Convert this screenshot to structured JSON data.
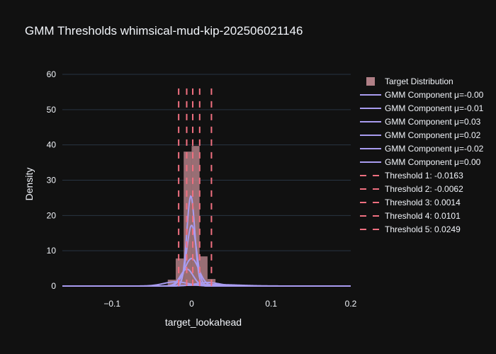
{
  "chart_data": {
    "type": "bar",
    "title": "GMM Thresholds whimsical-mud-kip-202506021146",
    "xlabel": "target_lookahead",
    "ylabel": "Density",
    "xlim": [
      -0.1625,
      0.2
    ],
    "ylim": [
      0,
      60
    ],
    "xticks": [
      {
        "v": -0.1,
        "label": "−0.1"
      },
      {
        "v": 0,
        "label": "0"
      },
      {
        "v": 0.1,
        "label": "0.1"
      },
      {
        "v": 0.2,
        "label": "0.2"
      }
    ],
    "yticks": [
      0,
      10,
      20,
      30,
      40,
      50,
      60
    ],
    "grid": true,
    "legend_position": "right",
    "colors": {
      "histogram": "#b07f86",
      "gmm": "#a99cf0",
      "threshold": "#f07080",
      "grid": "#283442",
      "background": "#111111"
    },
    "histogram": {
      "name": "Target Distribution",
      "bin_edges": [
        -0.03,
        -0.02,
        -0.01,
        0.0,
        0.01,
        0.02,
        0.03,
        0.04
      ],
      "values": [
        1.8,
        7.8,
        38.1,
        39.7,
        8.4,
        2.0,
        0.3
      ]
    },
    "gmm_components": [
      {
        "name": "GMM Component μ=-0.00",
        "mean": -0.001,
        "peak": 25.5,
        "sigma": 0.005
      },
      {
        "name": "GMM Component μ=-0.01",
        "mean": -0.006,
        "peak": 4.8,
        "sigma": 0.008
      },
      {
        "name": "GMM Component μ=0.03",
        "mean": 0.03,
        "peak": 0.4,
        "sigma": 0.03
      },
      {
        "name": "GMM Component μ=0.02",
        "mean": 0.02,
        "peak": 1.0,
        "sigma": 0.015
      },
      {
        "name": "GMM Component μ=-0.02",
        "mean": -0.02,
        "peak": 1.2,
        "sigma": 0.015
      },
      {
        "name": "GMM Component μ=0.00",
        "mean": 0.0,
        "peak": 17.2,
        "sigma": 0.006
      },
      {
        "name": "",
        "mean": 0.0,
        "peak": 7.8,
        "sigma": 0.009
      }
    ],
    "thresholds": [
      {
        "name": "Threshold 1: -0.0163",
        "value": -0.0163
      },
      {
        "name": "Threshold 2: -0.0062",
        "value": -0.0062
      },
      {
        "name": "Threshold 3: 0.0014",
        "value": 0.0014
      },
      {
        "name": "Threshold 4: 0.0101",
        "value": 0.0101
      },
      {
        "name": "Threshold 5: 0.0249",
        "value": 0.0249
      }
    ],
    "threshold_line_top": 56
  }
}
